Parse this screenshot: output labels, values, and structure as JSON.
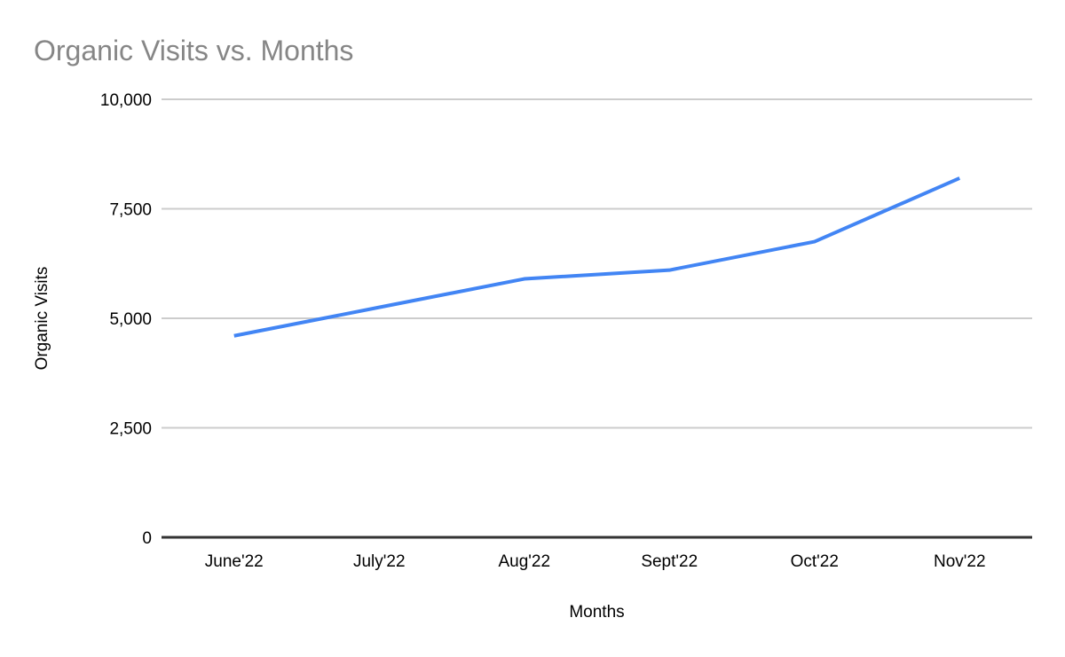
{
  "chart_data": {
    "type": "line",
    "title": "Organic Visits vs. Months",
    "xlabel": "Months",
    "ylabel": "Organic Visits",
    "categories": [
      "June'22",
      "July'22",
      "Aug'22",
      "Sept'22",
      "Oct'22",
      "Nov'22"
    ],
    "series": [
      {
        "name": "Organic Visits",
        "values": [
          4600,
          5250,
          5900,
          6100,
          6750,
          8200
        ]
      }
    ],
    "ylim": [
      0,
      10000
    ],
    "y_ticks": [
      0,
      2500,
      5000,
      7500,
      10000
    ],
    "y_tick_labels": [
      "0",
      "2,500",
      "5,000",
      "7,500",
      "10,000"
    ],
    "grid": true,
    "legend": "none",
    "colors": {
      "line": "#4285f4",
      "gridline": "#cccccc",
      "axis_line": "#333333",
      "title_text": "#868686",
      "axis_text": "#000000"
    }
  }
}
